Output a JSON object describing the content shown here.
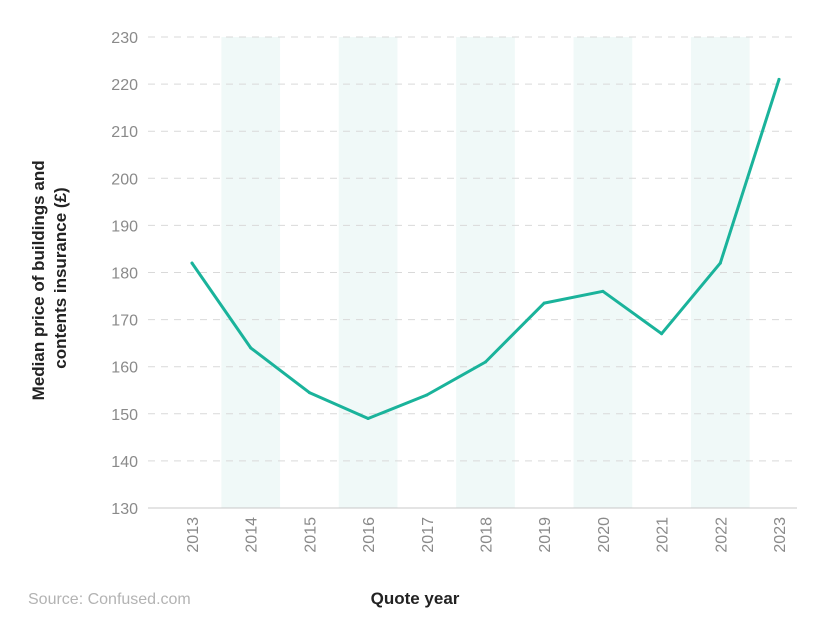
{
  "chart_data": {
    "type": "line",
    "title": "",
    "xlabel": "Quote year",
    "ylabel_lines": [
      "Median price of buildings and",
      "contents insurance (£)"
    ],
    "x": [
      "2013",
      "2014",
      "2015",
      "2016",
      "2017",
      "2018",
      "2019",
      "2020",
      "2021",
      "2022",
      "2023"
    ],
    "series": [
      {
        "values": [
          182,
          164,
          154.5,
          149,
          154,
          161,
          173.5,
          176,
          167,
          182,
          221
        ],
        "color": "#1ab39b"
      }
    ],
    "ylim": [
      130,
      230
    ],
    "yticks": [
      "130",
      "140",
      "150",
      "160",
      "170",
      "180",
      "190",
      "200",
      "210",
      "220",
      "230"
    ],
    "grid": "horizontal-dashed",
    "band_color": "#f0f9f8",
    "shaded_years": [
      "2014",
      "2016",
      "2018",
      "2020",
      "2022"
    ],
    "source": "Source: Confused.com"
  }
}
